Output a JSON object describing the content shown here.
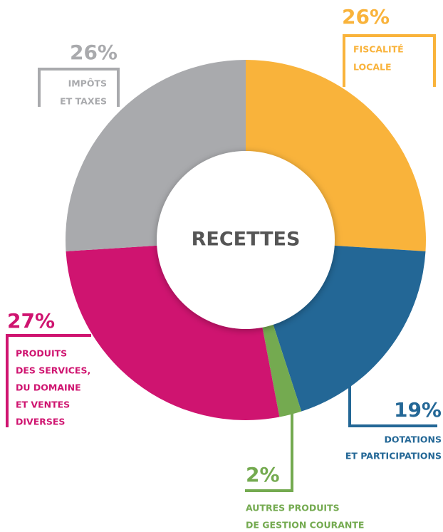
{
  "chart_data": {
    "type": "donut",
    "center_label": "RECETTES",
    "categories": [
      [
        "FISCALITÉ",
        "LOCALE"
      ],
      [
        "DOTATIONS",
        "ET PARTICIPATIONS"
      ],
      [
        "AUTRES PRODUITS",
        "DE GESTION COURANTE"
      ],
      [
        "PRODUITS",
        "DES SERVICES,",
        "DU DOMAINE",
        "ET VENTES",
        "DIVERSES"
      ],
      [
        "IMPÔTS",
        "ET TAXES"
      ]
    ],
    "values": [
      26,
      19,
      2,
      27,
      26
    ],
    "value_labels": [
      "26%",
      "19%",
      "2%",
      "27%",
      "26%"
    ],
    "colors": [
      "#f9b33b",
      "#236796",
      "#74aa50",
      "#cf1470",
      "#a9aaad"
    ]
  }
}
